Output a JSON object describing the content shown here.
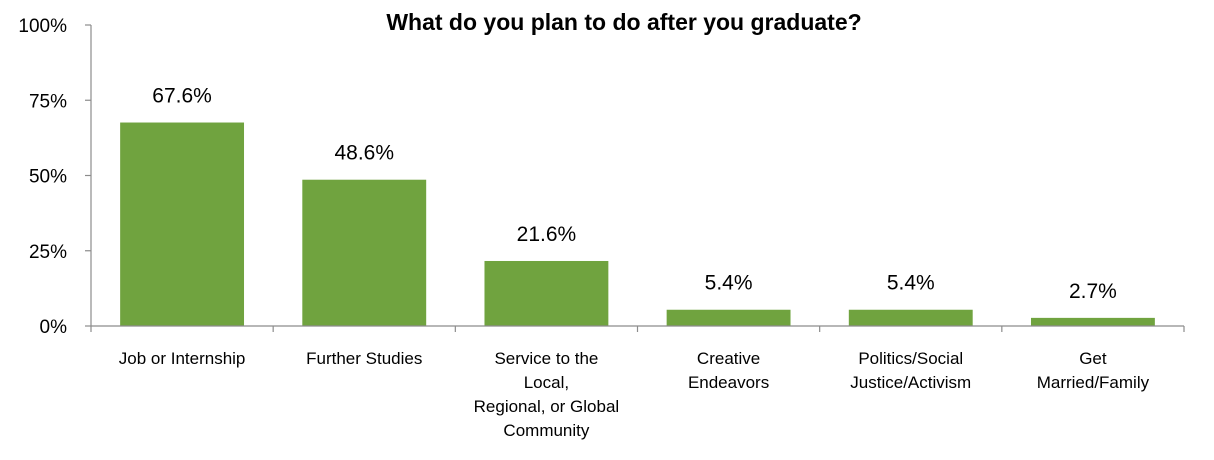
{
  "chart_data": {
    "type": "bar",
    "title": "What do you plan to do after you graduate?",
    "xlabel": "",
    "ylabel": "",
    "ylim": [
      0,
      100
    ],
    "yticks": [
      "0%",
      "25%",
      "50%",
      "75%",
      "100%"
    ],
    "ytick_values": [
      0,
      25,
      50,
      75,
      100
    ],
    "grid": false,
    "bar_color": "#70a33f",
    "categories": [
      [
        "Job or Internship"
      ],
      [
        "Further Studies"
      ],
      [
        "Service to the",
        "Local,",
        "Regional, or Global",
        "Community"
      ],
      [
        "Creative",
        "Endeavors"
      ],
      [
        "Politics/Social",
        "Justice/Activism"
      ],
      [
        "Get",
        "Married/Family"
      ]
    ],
    "values": [
      67.6,
      48.6,
      21.6,
      5.4,
      5.4,
      2.7
    ],
    "data_labels": [
      "67.6%",
      "48.6%",
      "21.6%",
      "5.4%",
      "5.4%",
      "2.7%"
    ]
  }
}
